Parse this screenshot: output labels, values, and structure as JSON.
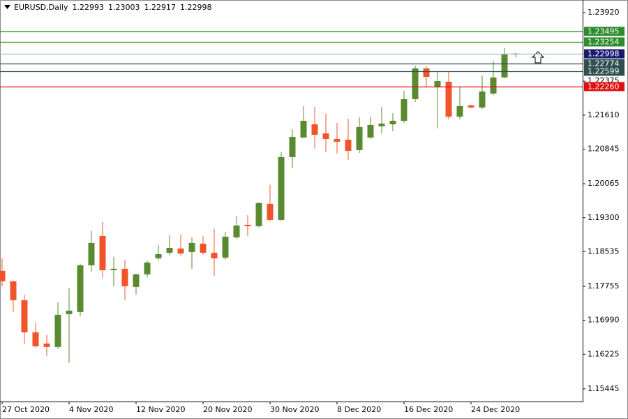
{
  "chart_data": {
    "type": "candlestick",
    "title": "EURUSD,Daily",
    "categories": [
      "27 Oct 2020",
      null,
      null,
      null,
      null,
      null,
      "4 Nov 2020",
      null,
      null,
      null,
      null,
      null,
      "12 Nov 2020",
      null,
      null,
      null,
      null,
      null,
      "20 Nov 2020",
      null,
      null,
      null,
      null,
      null,
      "30 Nov 2020",
      null,
      null,
      null,
      null,
      null,
      "8 Dec 2020",
      null,
      null,
      null,
      null,
      null,
      "16 Dec 2020",
      null,
      null,
      null,
      null,
      null,
      "24 Dec 2020",
      null,
      null,
      null,
      null
    ],
    "open": [
      1.18103,
      1.17867,
      1.17442,
      1.16719,
      1.16467,
      1.16389,
      1.17128,
      1.17175,
      1.18228,
      1.18889,
      1.18118,
      1.1815,
      1.17741,
      1.18024,
      1.18385,
      1.18511,
      1.18606,
      1.18527,
      1.18716,
      1.18511,
      1.18401,
      1.18857,
      1.1914,
      1.19109,
      1.19612,
      1.1925,
      1.20665,
      1.21105,
      1.21404,
      1.21199,
      1.21074,
      1.21058,
      1.20823,
      1.21105,
      1.21357,
      1.21404,
      1.21483,
      1.2197,
      1.22662,
      1.22237,
      1.22363,
      1.21577,
      1.21829,
      1.21782,
      1.22096,
      1.22458,
      1.22993
    ],
    "high": [
      1.18385,
      1.17882,
      1.17568,
      1.16939,
      1.16656,
      1.17395,
      1.17709,
      1.1826,
      1.18999,
      1.19203,
      1.18417,
      1.18354,
      1.1804,
      1.18338,
      1.18684,
      1.18904,
      1.1892,
      1.18857,
      1.18889,
      1.19046,
      1.18983,
      1.19329,
      1.1936,
      1.19659,
      1.20037,
      1.20776,
      1.21294,
      1.21813,
      1.21797,
      1.2164,
      1.21436,
      1.2153,
      1.21562,
      1.21577,
      1.21797,
      1.21656,
      1.22159,
      1.22725,
      1.2271,
      1.22584,
      1.22599,
      1.22253,
      1.21845,
      1.22505,
      1.22835,
      1.23118,
      1.23003
    ],
    "low": [
      1.17757,
      1.17175,
      1.16467,
      1.16373,
      1.16184,
      1.16342,
      1.16027,
      1.1708,
      1.18087,
      1.17945,
      1.17757,
      1.17442,
      1.17568,
      1.17961,
      1.18338,
      1.18448,
      1.18448,
      1.1815,
      1.18464,
      1.17992,
      1.18354,
      1.18826,
      1.18889,
      1.19077,
      1.19219,
      1.19234,
      1.20414,
      1.2109,
      1.20854,
      1.20776,
      1.20744,
      1.20603,
      1.2076,
      1.21074,
      1.212,
      1.21247,
      1.21436,
      1.21907,
      1.22253,
      1.2131,
      1.21514,
      1.21514,
      1.21766,
      1.2175,
      1.22065,
      1.22442,
      1.22917
    ],
    "close": [
      1.17867,
      1.17442,
      1.16719,
      1.16405,
      1.16389,
      1.17112,
      1.17207,
      1.18228,
      1.18732,
      1.18118,
      1.1815,
      1.17757,
      1.18024,
      1.1829,
      1.1848,
      1.18621,
      1.18495,
      1.18732,
      1.18511,
      1.18385,
      1.18873,
      1.19124,
      1.19109,
      1.19627,
      1.1925,
      1.20665,
      1.21121,
      1.21483,
      1.21168,
      1.21074,
      1.21011,
      1.20807,
      1.21341,
      1.21389,
      1.2142,
      1.21483,
      1.2197,
      1.22662,
      1.22473,
      1.22379,
      1.21577,
      1.21813,
      1.21782,
      1.22143,
      1.22458,
      1.22992,
      1.22998
    ],
    "up_color": "#5a8a30",
    "down_color": "#f0542a",
    "ylim": [
      1.1516,
      1.2414
    ],
    "yticks": [
      {
        "value": 1.2392,
        "label": "1.23920"
      },
      1.22375,
      {
        "value": 1.2161,
        "label": "1.21610"
      },
      1.20845,
      1.20065,
      {
        "value": 1.193,
        "label": "1.19300"
      },
      1.18535,
      1.17755,
      {
        "value": 1.1699,
        "label": "1.16990"
      },
      1.16225,
      1.15445
    ],
    "levels": [
      {
        "value": 1.23495,
        "color": "#2e8b2e",
        "line_color": "#2e8b2e"
      },
      {
        "value": 1.23254,
        "color": "#2e8b2e",
        "line_color": "#2e8b2e"
      },
      {
        "value": 1.22998,
        "color": "#191970",
        "line_color": "#a9b9c9"
      },
      {
        "value": 1.22774,
        "color": "#2f4f4f",
        "line_color": "#2f4f4f"
      },
      {
        "value": 1.22599,
        "color": "#2f4f4f",
        "line_color": "#2f4f4f"
      },
      {
        "value": 1.2226,
        "label": "1.22260",
        "color": "#e01010",
        "line_color": "#e01010"
      }
    ]
  }
}
